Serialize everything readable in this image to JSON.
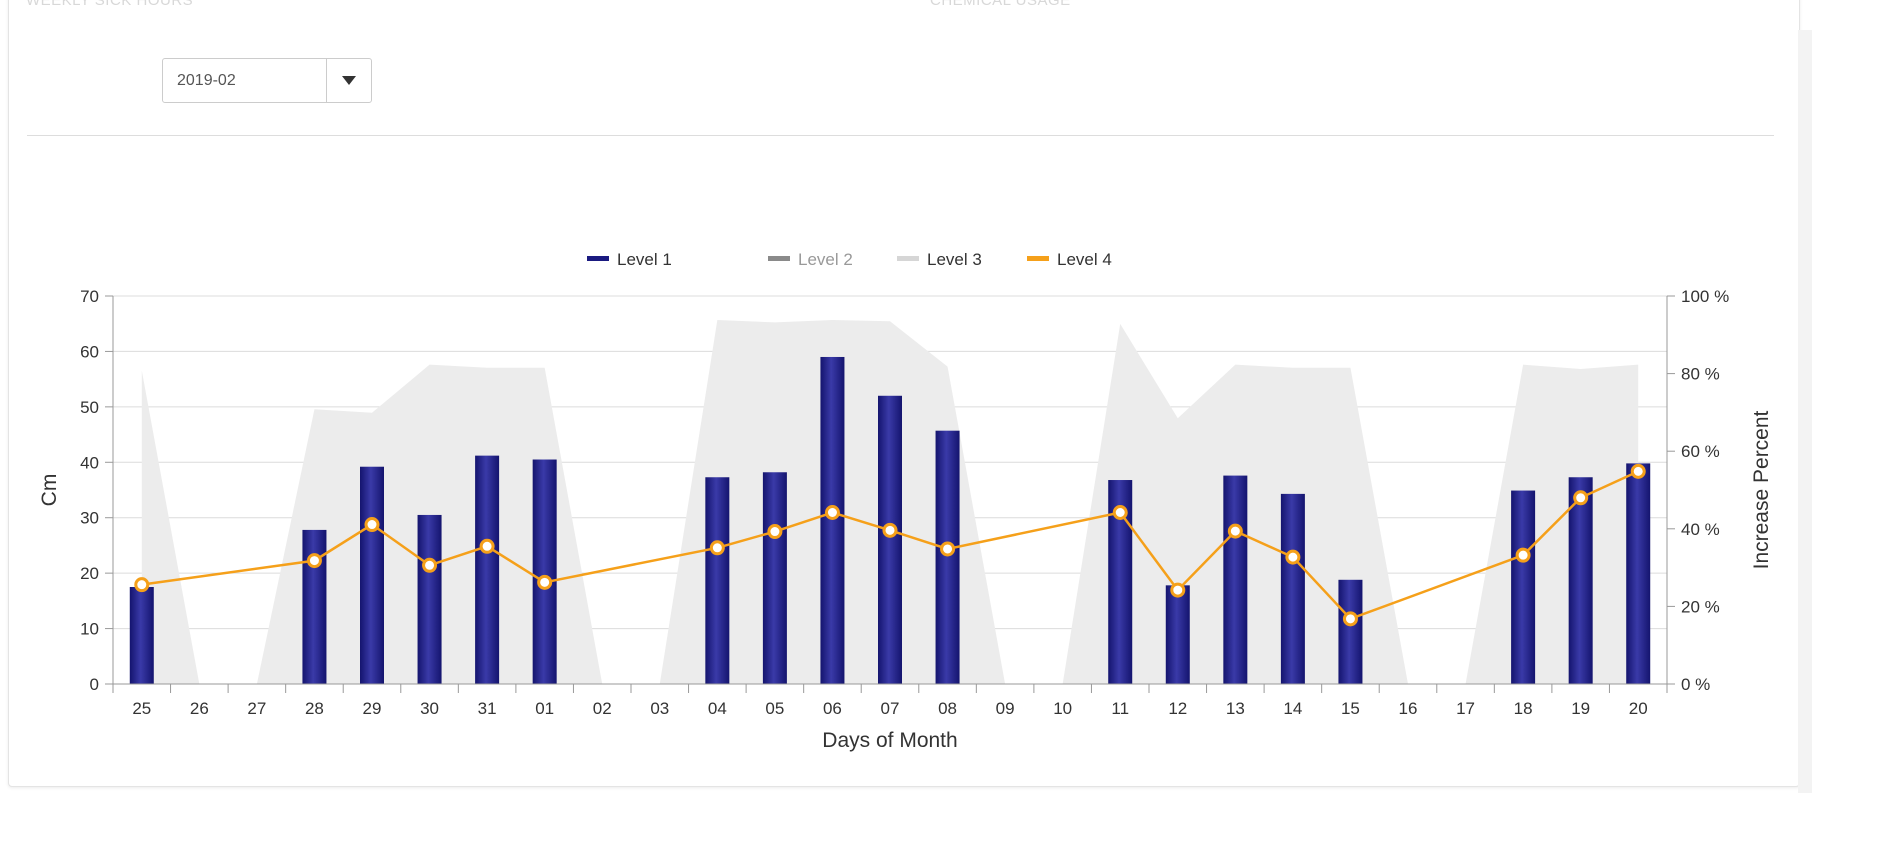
{
  "page": {
    "top_left_label": "WEEKLY SICK HOURS",
    "top_mid_label": "CHEMICAL USAGE",
    "month_select": {
      "value": "2019-02"
    }
  },
  "chart_data": {
    "type": "bar",
    "categories": [
      "25",
      "26",
      "27",
      "28",
      "29",
      "30",
      "31",
      "01",
      "02",
      "03",
      "04",
      "05",
      "06",
      "07",
      "08",
      "09",
      "10",
      "11",
      "12",
      "13",
      "14",
      "15",
      "16",
      "17",
      "18",
      "19",
      "20"
    ],
    "xlabel": "Days of Month",
    "ylabel": "Cm",
    "y2label": "Increase Percent",
    "ylim": [
      0,
      70
    ],
    "y2lim": [
      0,
      100
    ],
    "yticks": [
      0,
      10,
      20,
      30,
      40,
      50,
      60,
      70
    ],
    "y2ticks": [
      "0 %",
      "20 %",
      "40 %",
      "60 %",
      "80 %",
      "100 %"
    ],
    "grid": true,
    "legend_position": "top",
    "legend": [
      {
        "name": "Level 1",
        "color": "#1a1a80",
        "muted": false
      },
      {
        "name": "Level 2",
        "color": "#8a8a8a",
        "muted": true
      },
      {
        "name": "Level 3",
        "color": "#d6d6d6",
        "muted": false
      },
      {
        "name": "Level 4",
        "color": "#f5a01a",
        "muted": false
      }
    ],
    "series": [
      {
        "name": "Level 1",
        "type": "bar",
        "axis": "left",
        "color": "#1f1f8c",
        "values": [
          17.5,
          null,
          null,
          27.8,
          39.2,
          30.5,
          41.2,
          40.5,
          null,
          null,
          37.3,
          38.2,
          59,
          52,
          45.7,
          null,
          null,
          36.8,
          17.8,
          37.6,
          34.3,
          18.8,
          null,
          null,
          34.9,
          37.3,
          39.8
        ]
      },
      {
        "name": "Level 3",
        "type": "area",
        "axis": "right",
        "color": "#ececec",
        "values": [
          80.8,
          0,
          0,
          70.8,
          69.9,
          82.3,
          81.5,
          81.5,
          0,
          0,
          93.8,
          93.2,
          93.8,
          93.5,
          81.8,
          0,
          0,
          92.8,
          68.5,
          82.3,
          81.5,
          81.5,
          0,
          0,
          82.3,
          81.2,
          82.3
        ]
      },
      {
        "name": "Level 4",
        "type": "line",
        "axis": "right",
        "color": "#f5a01a",
        "values": [
          25.6,
          null,
          null,
          31.8,
          41.1,
          30.6,
          35.5,
          26.2,
          null,
          null,
          35.1,
          39.3,
          44.2,
          39.6,
          34.8,
          null,
          null,
          44.2,
          24.2,
          39.4,
          32.7,
          16.8,
          null,
          null,
          33.2,
          48.0,
          54.8
        ]
      }
    ]
  }
}
